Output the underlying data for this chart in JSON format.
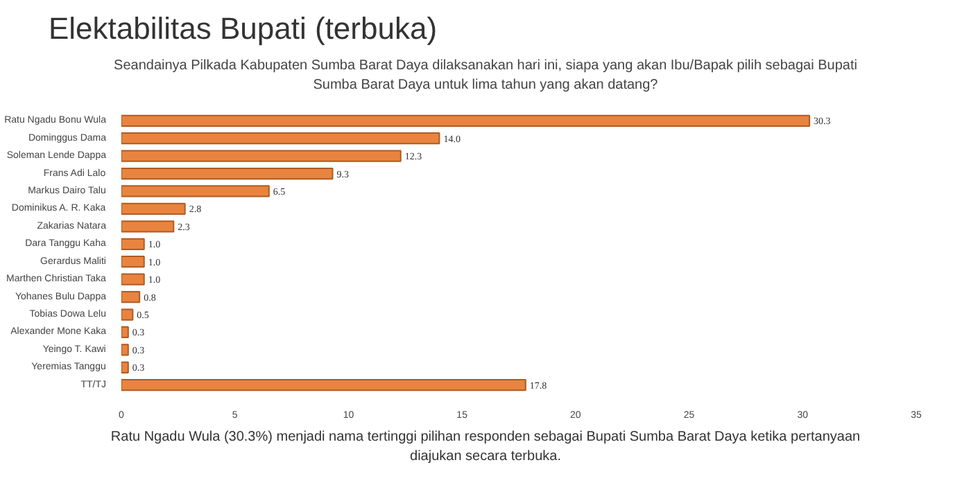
{
  "chart_data": {
    "type": "bar",
    "orientation": "horizontal",
    "title": "Elektabilitas Bupati (terbuka)",
    "subtitle": "Seandainya Pilkada Kabupaten Sumba Barat Daya dilaksanakan hari ini, siapa yang akan Ibu/Bapak pilih sebagai Bupati Sumba Barat Daya untuk lima tahun yang akan datang?",
    "categories": [
      "Ratu Ngadu Bonu Wula",
      "Dominggus Dama",
      "Soleman Lende Dappa",
      "Frans Adi Lalo",
      "Markus Dairo Talu",
      "Dominikus A. R. Kaka",
      "Zakarias Natara",
      "Dara Tanggu Kaha",
      "Gerardus Maliti",
      "Marthen Christian Taka",
      "Yohanes Bulu Dappa",
      "Tobias Dowa Lelu",
      "Alexander Mone Kaka",
      "Yeingo T. Kawi",
      "Yeremias Tanggu",
      "TT/TJ"
    ],
    "values": [
      30.3,
      14.0,
      12.3,
      9.3,
      6.5,
      2.8,
      2.3,
      1.0,
      1.0,
      1.0,
      0.8,
      0.5,
      0.3,
      0.3,
      0.3,
      17.8
    ],
    "value_labels": [
      "30.3",
      "14.0",
      "12.3",
      "9.3",
      "6.5",
      "2.8",
      "2.3",
      "1.0",
      "1.0",
      "1.0",
      "0.8",
      "0.5",
      "0.3",
      "0.3",
      "0.3",
      "17.8"
    ],
    "color": "#e8843f",
    "xlim": [
      0,
      35
    ],
    "xticks": [
      0,
      5,
      10,
      15,
      20,
      25,
      30,
      35
    ],
    "grid": false,
    "annotations": [
      "Ratu Ngadu Wula (30.3%) menjadi nama tertinggi pilihan responden sebagai Bupati Sumba Barat Daya ketika pertanyaan diajukan secara terbuka."
    ]
  }
}
